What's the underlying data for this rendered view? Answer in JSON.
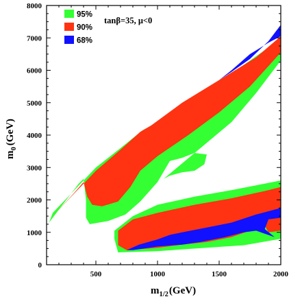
{
  "chart_data": {
    "type": "area",
    "title": "",
    "annotation": "tanβ=35, μ<0",
    "xlabel": "m",
    "xlabel_sub": "1/2",
    "xlabel_unit": "(GeV)",
    "ylabel": "m",
    "ylabel_sub": "0",
    "ylabel_unit": "(GeV)",
    "xlim": [
      100,
      2000
    ],
    "ylim": [
      0,
      8000
    ],
    "x_ticks": [
      500,
      1000,
      1500,
      2000
    ],
    "y_ticks": [
      0,
      1000,
      2000,
      3000,
      4000,
      5000,
      6000,
      7000,
      8000
    ],
    "legend_position": "top-left",
    "grid": false,
    "series": [
      {
        "name": "95%",
        "color": "#33ff33",
        "regions": [
          [
            [
              120,
              1300
            ],
            [
              160,
              1500
            ],
            [
              260,
              2000
            ],
            [
              360,
              2500
            ],
            [
              400,
              2650
            ],
            [
              420,
              2000
            ],
            [
              420,
              1450
            ],
            [
              450,
              1250
            ],
            [
              600,
              1350
            ],
            [
              740,
              1550
            ],
            [
              860,
              1950
            ],
            [
              1000,
              2550
            ],
            [
              1100,
              3200
            ],
            [
              1200,
              3300
            ],
            [
              1300,
              3450
            ],
            [
              1400,
              3400
            ],
            [
              1380,
              3100
            ],
            [
              1300,
              2900
            ],
            [
              1200,
              2850
            ],
            [
              1100,
              2750
            ],
            [
              1050,
              2650
            ],
            [
              1600,
              4400
            ],
            [
              1800,
              5300
            ],
            [
              2000,
              6300
            ],
            [
              2000,
              7000
            ],
            [
              1900,
              6700
            ],
            [
              1600,
              5900
            ],
            [
              1300,
              5100
            ],
            [
              1000,
              4400
            ],
            [
              880,
              4150
            ],
            [
              700,
              3600
            ],
            [
              500,
              3000
            ],
            [
              300,
              2200
            ],
            [
              150,
              1600
            ]
          ],
          [
            [
              650,
              1050
            ],
            [
              800,
              1500
            ],
            [
              1000,
              1850
            ],
            [
              1300,
              2100
            ],
            [
              1600,
              2300
            ],
            [
              1800,
              2450
            ],
            [
              2000,
              2600
            ],
            [
              2000,
              800
            ],
            [
              1700,
              600
            ],
            [
              1500,
              550
            ],
            [
              1000,
              420
            ],
            [
              680,
              380
            ],
            [
              650,
              800
            ]
          ]
        ]
      },
      {
        "name": "90%",
        "color": "#ff3311",
        "regions": [
          [
            [
              150,
              1500
            ],
            [
              260,
              1950
            ],
            [
              320,
              2200
            ],
            [
              400,
              2550
            ],
            [
              430,
              2100
            ],
            [
              470,
              1850
            ],
            [
              550,
              1800
            ],
            [
              680,
              1950
            ],
            [
              780,
              2400
            ],
            [
              860,
              2900
            ],
            [
              1000,
              3350
            ],
            [
              1250,
              4000
            ],
            [
              1500,
              4700
            ],
            [
              1750,
              5500
            ],
            [
              2000,
              6550
            ],
            [
              2000,
              7050
            ],
            [
              1800,
              6400
            ],
            [
              1500,
              5700
            ],
            [
              1200,
              5000
            ],
            [
              950,
              4300
            ],
            [
              860,
              4100
            ],
            [
              700,
              3550
            ],
            [
              500,
              2900
            ],
            [
              300,
              2100
            ]
          ],
          [
            [
              680,
              1050
            ],
            [
              800,
              1400
            ],
            [
              1000,
              1600
            ],
            [
              1300,
              1850
            ],
            [
              1600,
              2050
            ],
            [
              1900,
              2300
            ],
            [
              2000,
              2400
            ],
            [
              2000,
              1050
            ],
            [
              1900,
              1000
            ],
            [
              1850,
              1350
            ],
            [
              1750,
              1050
            ],
            [
              1600,
              850
            ],
            [
              1400,
              700
            ],
            [
              1200,
              620
            ],
            [
              1000,
              520
            ],
            [
              750,
              450
            ],
            [
              680,
              600
            ]
          ]
        ]
      },
      {
        "name": "68%",
        "color": "#1111ff",
        "regions": [
          [
            [
              1500,
              5700
            ],
            [
              1600,
              5950
            ],
            [
              1750,
              6350
            ],
            [
              1900,
              6900
            ],
            [
              2000,
              7400
            ],
            [
              2000,
              7050
            ],
            [
              1900,
              6850
            ],
            [
              1750,
              6500
            ],
            [
              1600,
              6000
            ]
          ],
          [
            [
              750,
              450
            ],
            [
              850,
              620
            ],
            [
              1000,
              780
            ],
            [
              1100,
              920
            ],
            [
              1200,
              1000
            ],
            [
              1400,
              1150
            ],
            [
              1600,
              1300
            ],
            [
              1800,
              1550
            ],
            [
              2000,
              1750
            ],
            [
              2000,
              1450
            ],
            [
              1900,
              1400
            ],
            [
              1870,
              1100
            ],
            [
              1950,
              850
            ],
            [
              1800,
              1050
            ],
            [
              1700,
              1000
            ],
            [
              1550,
              850
            ],
            [
              1350,
              700
            ],
            [
              1200,
              620
            ],
            [
              1000,
              560
            ],
            [
              800,
              450
            ]
          ]
        ]
      }
    ]
  }
}
